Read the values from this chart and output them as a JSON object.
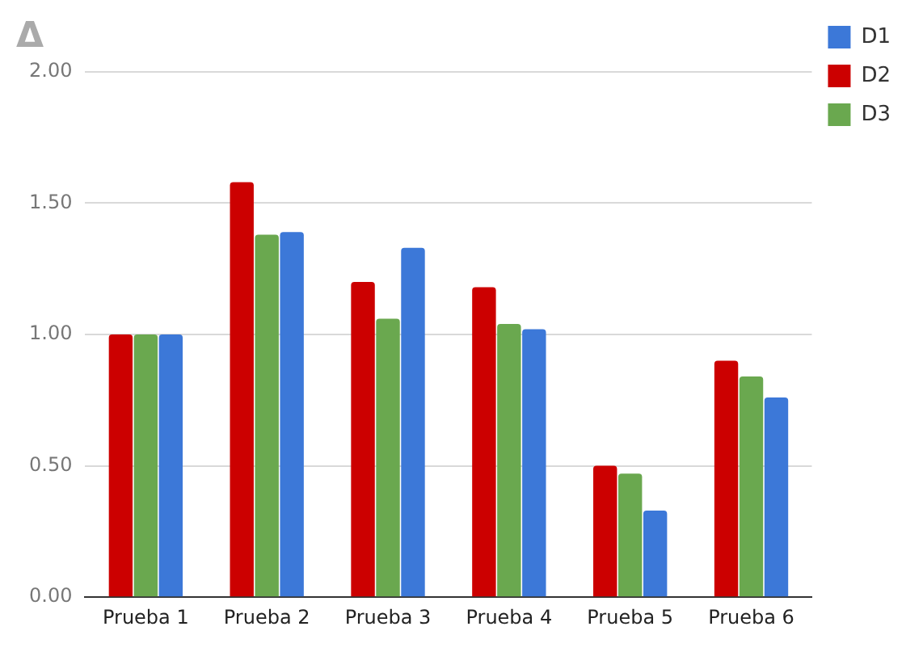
{
  "chart_data": {
    "type": "bar",
    "title": "Δ",
    "categories": [
      "Prueba 1",
      "Prueba 2",
      "Prueba 3",
      "Prueba 4",
      "Prueba 5",
      "Prueba 6"
    ],
    "series": [
      {
        "name": "D2",
        "color": "#cc0000",
        "values": [
          1.0,
          1.58,
          1.2,
          1.18,
          0.5,
          0.9
        ]
      },
      {
        "name": "D3",
        "color": "#6aa84f",
        "values": [
          1.0,
          1.38,
          1.06,
          1.04,
          0.47,
          0.84
        ]
      },
      {
        "name": "D1",
        "color": "#3c78d8",
        "values": [
          1.0,
          1.39,
          1.33,
          1.02,
          0.33,
          0.76
        ]
      }
    ],
    "ylim": [
      0,
      2
    ],
    "yticks": [
      {
        "value": 0,
        "label": "0.00"
      },
      {
        "value": 0.5,
        "label": "0.50"
      },
      {
        "value": 1,
        "label": "1.00"
      },
      {
        "value": 1.5,
        "label": "1.50"
      },
      {
        "value": 2,
        "label": "2.00"
      }
    ],
    "grid": "y",
    "legend": "right"
  }
}
